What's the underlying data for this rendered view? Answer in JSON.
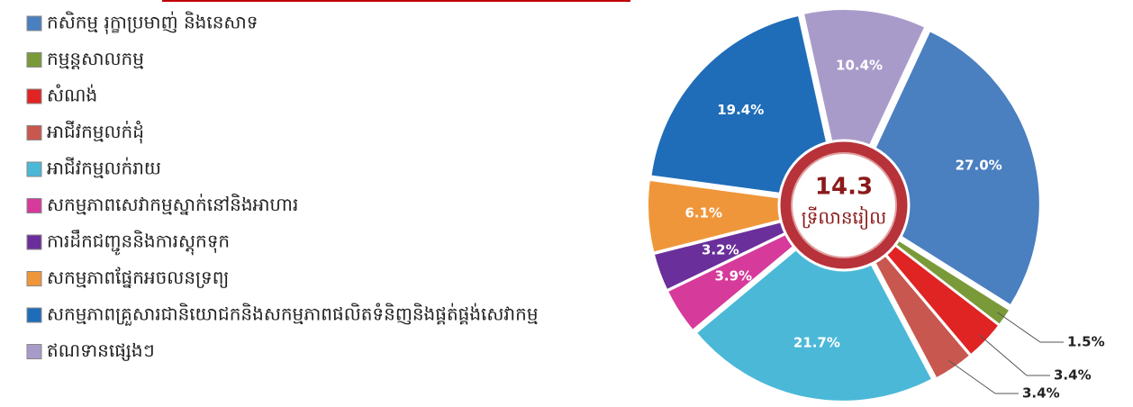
{
  "chart_data": {
    "type": "pie",
    "categories": [
      "កសិកម្ម រុក្ខាប្រមាញ់ និងនេសាទ",
      "កម្មន្តសាលកម្ម",
      "សំណង់",
      "អាជីវកម្មលក់ដុំ",
      "អាជីវកម្មលក់រាយ",
      "សកម្មភាពសេវាកម្មស្នាក់នៅនិងអាហារ",
      "ការដឹកជញ្ជូននិងការស្តុកទុក",
      "សកម្មភាពផ្នែកអចលនទ្រព្យ",
      "សកម្មភាពគ្រួសារជានិយោជកនិងសកម្មភាពផលិតទំនិញនិងផ្គត់ផ្គង់សេវាកម្ម",
      "ឥណទានផ្សេងៗ"
    ],
    "values": [
      27.0,
      1.5,
      3.4,
      3.4,
      21.7,
      3.9,
      3.2,
      6.1,
      19.4,
      10.4
    ],
    "value_labels": [
      "27.0%",
      "1.5%",
      "3.4%",
      "3.4%",
      "21.7%",
      "3.9%",
      "3.2%",
      "6.1%",
      "19.4%",
      "10.4%"
    ],
    "colors": [
      "#4a7fc0",
      "#7a9a3a",
      "#e02424",
      "#c8584f",
      "#4bb8d8",
      "#d63a9a",
      "#6a2f9a",
      "#f0963a",
      "#1f6db8",
      "#a99bc9"
    ],
    "center_value": 14.3,
    "center_label": "ទ្រីលានរៀល"
  }
}
